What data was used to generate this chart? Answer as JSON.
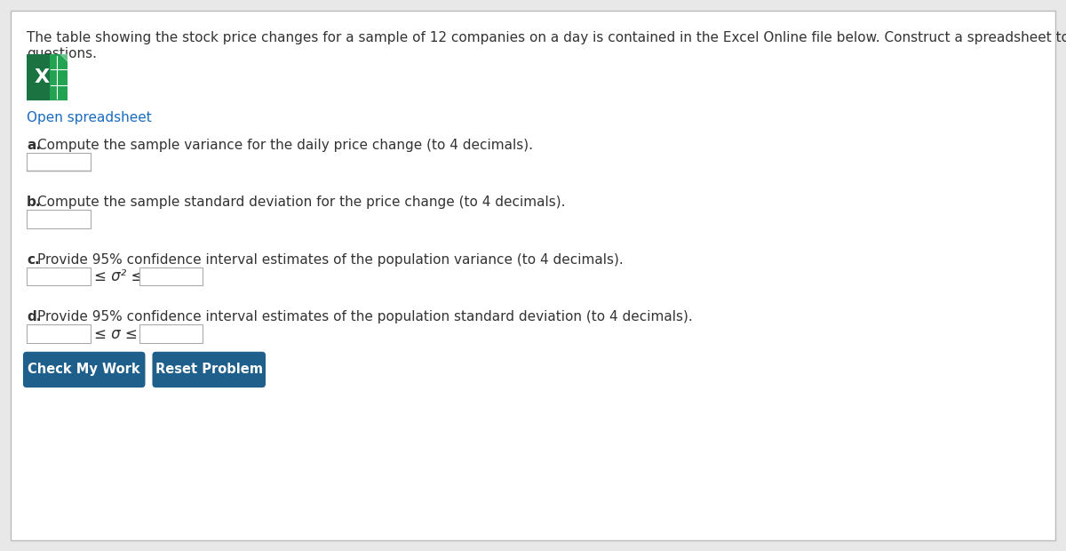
{
  "bg_color": "#e8e8e8",
  "content_bg": "#ffffff",
  "border_color": "#bbbbbb",
  "title_line1": "The table showing the stock price changes for a sample of 12 companies on a day is contained in the Excel Online file below. Construct a spreadsheet to answer the following",
  "title_line2": "questions.",
  "title_fontsize": 11,
  "link_text": "Open spreadsheet",
  "link_color": "#1a6bbf",
  "question_a": "a. Compute the sample variance for the daily price change (to 4 decimals).",
  "question_b": "b. Compute the sample standard deviation for the price change (to 4 decimals).",
  "question_c": "c. Provide 95% confidence interval estimates of the population variance (to 4 decimals).",
  "question_d": "d. Provide 95% confidence interval estimates of the population standard deviation (to 4 decimals).",
  "bold_a": "a.",
  "bold_b": "b.",
  "bold_c": "c.",
  "bold_d": "d.",
  "question_fontsize": 11,
  "input_box_color": "#ffffff",
  "input_border_color": "#aaaaaa",
  "sigma2_label": "≤ σ² ≤",
  "sigma_label": "≤ σ ≤",
  "button1_text": "Check My Work",
  "button2_text": "Reset Problem",
  "button_bg": "#1f5f8b",
  "button_text_color": "#ffffff",
  "button_fontsize": 10.5,
  "excel_green_dark": "#1a7340",
  "excel_green_light": "#21a352",
  "text_color": "#333333"
}
